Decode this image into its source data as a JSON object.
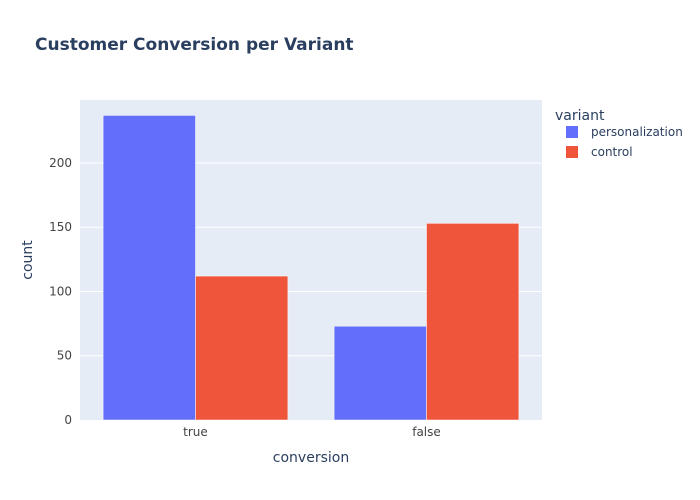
{
  "chart_data": {
    "type": "bar",
    "title": "Customer Conversion per Variant",
    "xlabel": "conversion",
    "ylabel": "count",
    "categories": [
      "true",
      "false"
    ],
    "series": [
      {
        "name": "personalization",
        "values": [
          237,
          73
        ]
      },
      {
        "name": "control",
        "values": [
          112,
          153
        ]
      }
    ],
    "ylim": [
      0,
      249
    ],
    "yticks": [
      0,
      50,
      100,
      150,
      200
    ],
    "grid": true,
    "legend_title": "variant",
    "legend_position": "right",
    "barmode": "group"
  },
  "colors": {
    "personalization": "#636efa",
    "control": "#ef553b",
    "plot_background": "#e5ecf6",
    "gridline": "#ffffff",
    "text": "#2a3f5f",
    "tick_text": "#444444"
  }
}
